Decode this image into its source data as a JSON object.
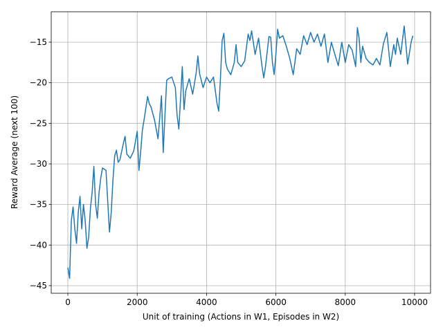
{
  "chart_data": {
    "type": "line",
    "x_label": "Unit of training (Actions in W1, Episodes in W2)",
    "y_label": "Reward Average (next 100)",
    "x": [
      0,
      50,
      100,
      150,
      200,
      250,
      300,
      350,
      400,
      450,
      500,
      550,
      600,
      650,
      700,
      750,
      800,
      850,
      900,
      950,
      1000,
      1100,
      1200,
      1250,
      1300,
      1350,
      1400,
      1450,
      1500,
      1600,
      1650,
      1700,
      1800,
      1900,
      2000,
      2050,
      2100,
      2150,
      2200,
      2300,
      2350,
      2400,
      2500,
      2600,
      2700,
      2750,
      2800,
      2850,
      2900,
      3000,
      3100,
      3150,
      3200,
      3250,
      3300,
      3350,
      3400,
      3500,
      3600,
      3700,
      3750,
      3800,
      3900,
      4000,
      4100,
      4200,
      4300,
      4350,
      4400,
      4450,
      4500,
      4550,
      4600,
      4700,
      4800,
      4850,
      4900,
      5000,
      5100,
      5200,
      5250,
      5300,
      5400,
      5500,
      5600,
      5650,
      5700,
      5800,
      5850,
      5900,
      5950,
      6000,
      6050,
      6100,
      6200,
      6300,
      6400,
      6500,
      6600,
      6700,
      6800,
      6900,
      7000,
      7100,
      7200,
      7300,
      7400,
      7500,
      7600,
      7700,
      7800,
      7900,
      8000,
      8100,
      8200,
      8300,
      8350,
      8400,
      8450,
      8500,
      8600,
      8700,
      8800,
      8900,
      9000,
      9100,
      9200,
      9300,
      9400,
      9450,
      9500,
      9600,
      9700,
      9800,
      9900,
      9950
    ],
    "values": [
      -42.8,
      -44.1,
      -37,
      -35.3,
      -38,
      -39.8,
      -36,
      -34,
      -38,
      -35,
      -37,
      -40.4,
      -39,
      -35.5,
      -33.5,
      -30.3,
      -35,
      -36.7,
      -33.5,
      -31.7,
      -30.5,
      -30.8,
      -38.4,
      -36,
      -32,
      -29,
      -28.3,
      -29.8,
      -29.5,
      -27.5,
      -26.6,
      -28.8,
      -29.3,
      -28.4,
      -26,
      -30.8,
      -28.5,
      -25.8,
      -24.5,
      -21.7,
      -22.6,
      -23,
      -24.6,
      -26.9,
      -21.6,
      -28.6,
      -24,
      -19.7,
      -19.5,
      -19.3,
      -20.6,
      -24,
      -25.7,
      -22,
      -18,
      -23.3,
      -21,
      -19.5,
      -21.4,
      -18.8,
      -16.7,
      -18.9,
      -20.6,
      -19.3,
      -20,
      -19.3,
      -22.5,
      -23.5,
      -19.5,
      -14.8,
      -13.9,
      -17.5,
      -18.3,
      -19,
      -17.5,
      -15.3,
      -17.5,
      -18,
      -17.3,
      -14,
      -14.8,
      -13.6,
      -16.5,
      -14.5,
      -18,
      -19.4,
      -18,
      -14.3,
      -14.4,
      -17.5,
      -19,
      -16.5,
      -13.4,
      -14.5,
      -14.2,
      -15.5,
      -17,
      -19,
      -15.8,
      -16.5,
      -14.2,
      -15.3,
      -13.8,
      -15,
      -14,
      -15.5,
      -14,
      -17.5,
      -15,
      -16.5,
      -17.9,
      -15,
      -17.5,
      -15.3,
      -16,
      -18,
      -13.2,
      -14.5,
      -17.5,
      -15.5,
      -17,
      -17.5,
      -17.8,
      -17,
      -17.8,
      -15.2,
      -13.8,
      -18,
      -15.3,
      -16.5,
      -14.5,
      -16.5,
      -13,
      -17.7,
      -15,
      -14.2
    ],
    "color": "#1f77b4",
    "xlim": [
      -480,
      10460
    ],
    "ylim": [
      -45.94,
      -11.25
    ],
    "xticks": [
      0,
      2000,
      4000,
      6000,
      8000,
      10000
    ],
    "yticks": [
      {
        "value": -45,
        "label": "−45"
      },
      {
        "value": -40,
        "label": "−40"
      },
      {
        "value": -35,
        "label": "−35"
      },
      {
        "value": -30,
        "label": "−30"
      },
      {
        "value": -25,
        "label": "−25"
      },
      {
        "value": -20,
        "label": "−20"
      },
      {
        "value": -15,
        "label": "−15"
      }
    ],
    "grid": true
  }
}
